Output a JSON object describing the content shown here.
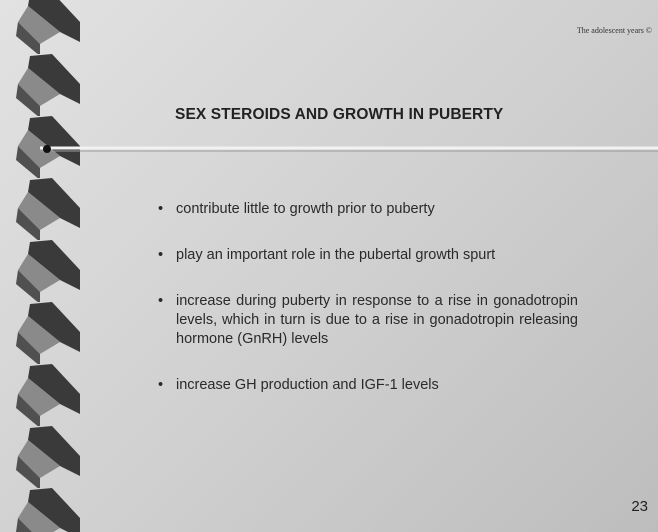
{
  "header": {
    "running_title": "The adolescent years ©"
  },
  "slide": {
    "title": "SEX STEROIDS AND GROWTH IN PUBERTY",
    "bullets": [
      "contribute little to growth prior to puberty",
      "play an important role in the pubertal growth spurt",
      "increase during puberty in response to a rise in gonadotropin levels, which in turn is due to a rise in gonadotropin releasing hormone (GnRH) levels",
      "increase GH production and IGF-1 levels"
    ],
    "page_number": "23"
  }
}
